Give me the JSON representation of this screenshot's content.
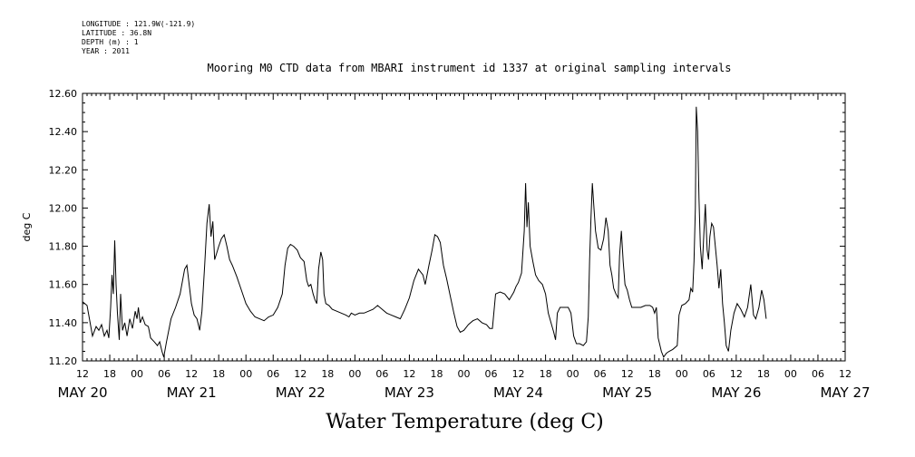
{
  "header": {
    "lines": [
      "LONGITUDE : 121.9W(-121.9)",
      "LATITUDE : 36.8N",
      "DEPTH (m) : 1",
      "YEAR : 2011"
    ],
    "title": "Mooring M0 CTD data from MBARI instrument id 1337 at original sampling intervals"
  },
  "caption": "Water Temperature (deg C)",
  "chart_data": {
    "type": "line",
    "title": "Mooring M0 CTD data from MBARI instrument id 1337 at original sampling intervals",
    "xlabel": "",
    "ylabel": "deg C",
    "ylim": [
      11.2,
      12.6
    ],
    "xlim": [
      12,
      180
    ],
    "x_unit": "hours since May 20 00:00, 2011",
    "yticks": [
      "11.20",
      "11.40",
      "11.60",
      "11.80",
      "12.00",
      "12.20",
      "12.40",
      "12.60"
    ],
    "xticks": [
      {
        "t": 12,
        "label": "12"
      },
      {
        "t": 18,
        "label": "18"
      },
      {
        "t": 24,
        "label": "00"
      },
      {
        "t": 30,
        "label": "06"
      },
      {
        "t": 36,
        "label": "12"
      },
      {
        "t": 42,
        "label": "18"
      },
      {
        "t": 48,
        "label": "00"
      },
      {
        "t": 54,
        "label": "06"
      },
      {
        "t": 60,
        "label": "12"
      },
      {
        "t": 66,
        "label": "18"
      },
      {
        "t": 72,
        "label": "00"
      },
      {
        "t": 78,
        "label": "06"
      },
      {
        "t": 84,
        "label": "12"
      },
      {
        "t": 90,
        "label": "18"
      },
      {
        "t": 96,
        "label": "00"
      },
      {
        "t": 102,
        "label": "06"
      },
      {
        "t": 108,
        "label": "12"
      },
      {
        "t": 114,
        "label": "18"
      },
      {
        "t": 120,
        "label": "00"
      },
      {
        "t": 126,
        "label": "06"
      },
      {
        "t": 132,
        "label": "12"
      },
      {
        "t": 138,
        "label": "18"
      },
      {
        "t": 144,
        "label": "00"
      },
      {
        "t": 150,
        "label": "06"
      },
      {
        "t": 156,
        "label": "12"
      },
      {
        "t": 162,
        "label": "18"
      },
      {
        "t": 168,
        "label": "00"
      },
      {
        "t": 174,
        "label": "06"
      },
      {
        "t": 180,
        "label": "12"
      }
    ],
    "day_labels": [
      {
        "t": 12,
        "label": "MAY 20"
      },
      {
        "t": 36,
        "label": "MAY 21"
      },
      {
        "t": 60,
        "label": "MAY 22"
      },
      {
        "t": 84,
        "label": "MAY 23"
      },
      {
        "t": 108,
        "label": "MAY 24"
      },
      {
        "t": 132,
        "label": "MAY 25"
      },
      {
        "t": 156,
        "label": "MAY 26"
      },
      {
        "t": 180,
        "label": "MAY 27"
      }
    ],
    "series": [
      {
        "name": "",
        "color": "#000000",
        "points": [
          [
            12,
            11.51
          ],
          [
            13,
            11.49
          ],
          [
            14.2,
            11.33
          ],
          [
            15,
            11.38
          ],
          [
            15.6,
            11.36
          ],
          [
            16.2,
            11.39
          ],
          [
            16.8,
            11.33
          ],
          [
            17.4,
            11.36
          ],
          [
            17.8,
            11.32
          ],
          [
            18.2,
            11.48
          ],
          [
            18.5,
            11.65
          ],
          [
            18.8,
            11.55
          ],
          [
            19.1,
            11.83
          ],
          [
            19.4,
            11.6
          ],
          [
            19.7,
            11.45
          ],
          [
            20.1,
            11.31
          ],
          [
            20.4,
            11.55
          ],
          [
            20.8,
            11.36
          ],
          [
            21.3,
            11.4
          ],
          [
            21.8,
            11.33
          ],
          [
            22.4,
            11.42
          ],
          [
            23,
            11.37
          ],
          [
            23.6,
            11.46
          ],
          [
            24,
            11.42
          ],
          [
            24.3,
            11.48
          ],
          [
            24.7,
            11.4
          ],
          [
            25.2,
            11.43
          ],
          [
            25.8,
            11.39
          ],
          [
            26.5,
            11.38
          ],
          [
            27,
            11.32
          ],
          [
            27.8,
            11.3
          ],
          [
            28.5,
            11.28
          ],
          [
            29,
            11.3
          ],
          [
            29.5,
            11.25
          ],
          [
            29.9,
            11.22
          ],
          [
            30.5,
            11.3
          ],
          [
            31.5,
            11.42
          ],
          [
            32.5,
            11.48
          ],
          [
            33.5,
            11.55
          ],
          [
            34.5,
            11.68
          ],
          [
            35,
            11.7
          ],
          [
            35.5,
            11.6
          ],
          [
            36,
            11.5
          ],
          [
            36.6,
            11.44
          ],
          [
            37.2,
            11.42
          ],
          [
            37.8,
            11.36
          ],
          [
            38.3,
            11.46
          ],
          [
            38.9,
            11.7
          ],
          [
            39.4,
            11.92
          ],
          [
            39.9,
            12.02
          ],
          [
            40.3,
            11.85
          ],
          [
            40.7,
            11.93
          ],
          [
            41.1,
            11.73
          ],
          [
            41.5,
            11.76
          ],
          [
            42,
            11.8
          ],
          [
            42.6,
            11.84
          ],
          [
            43.2,
            11.86
          ],
          [
            43.8,
            11.8
          ],
          [
            44.4,
            11.73
          ],
          [
            45,
            11.7
          ],
          [
            46,
            11.64
          ],
          [
            47,
            11.57
          ],
          [
            48,
            11.5
          ],
          [
            49,
            11.46
          ],
          [
            50,
            11.43
          ],
          [
            51,
            11.42
          ],
          [
            52,
            11.41
          ],
          [
            53,
            11.43
          ],
          [
            54,
            11.44
          ],
          [
            55,
            11.48
          ],
          [
            56,
            11.55
          ],
          [
            56.6,
            11.7
          ],
          [
            57.2,
            11.79
          ],
          [
            57.8,
            11.81
          ],
          [
            58.5,
            11.8
          ],
          [
            59.3,
            11.78
          ],
          [
            60,
            11.74
          ],
          [
            60.8,
            11.72
          ],
          [
            61.4,
            11.62
          ],
          [
            61.8,
            11.59
          ],
          [
            62.3,
            11.6
          ],
          [
            62.8,
            11.55
          ],
          [
            63.2,
            11.52
          ],
          [
            63.6,
            11.5
          ],
          [
            64,
            11.68
          ],
          [
            64.5,
            11.77
          ],
          [
            64.9,
            11.73
          ],
          [
            65.2,
            11.55
          ],
          [
            65.6,
            11.5
          ],
          [
            66.3,
            11.49
          ],
          [
            67,
            11.47
          ],
          [
            68,
            11.46
          ],
          [
            69,
            11.45
          ],
          [
            70,
            11.44
          ],
          [
            70.7,
            11.43
          ],
          [
            71.2,
            11.45
          ],
          [
            72,
            11.44
          ],
          [
            73,
            11.45
          ],
          [
            74,
            11.45
          ],
          [
            75,
            11.46
          ],
          [
            76,
            11.47
          ],
          [
            77,
            11.49
          ],
          [
            78,
            11.47
          ],
          [
            79,
            11.45
          ],
          [
            80,
            11.44
          ],
          [
            81,
            11.43
          ],
          [
            82,
            11.42
          ],
          [
            83,
            11.47
          ],
          [
            84,
            11.53
          ],
          [
            85,
            11.62
          ],
          [
            86,
            11.68
          ],
          [
            87,
            11.65
          ],
          [
            87.5,
            11.6
          ],
          [
            88.3,
            11.7
          ],
          [
            89,
            11.78
          ],
          [
            89.6,
            11.86
          ],
          [
            90.2,
            11.85
          ],
          [
            90.8,
            11.82
          ],
          [
            91.5,
            11.7
          ],
          [
            92.2,
            11.63
          ],
          [
            93,
            11.54
          ],
          [
            93.8,
            11.45
          ],
          [
            94.5,
            11.38
          ],
          [
            95.2,
            11.35
          ],
          [
            96,
            11.36
          ],
          [
            97,
            11.39
          ],
          [
            98,
            11.41
          ],
          [
            99,
            11.42
          ],
          [
            100,
            11.4
          ],
          [
            101,
            11.39
          ],
          [
            101.7,
            11.37
          ],
          [
            102.3,
            11.37
          ],
          [
            103,
            11.55
          ],
          [
            104,
            11.56
          ],
          [
            105,
            11.55
          ],
          [
            106,
            11.52
          ],
          [
            107,
            11.56
          ],
          [
            107.5,
            11.59
          ],
          [
            108,
            11.61
          ],
          [
            108.7,
            11.66
          ],
          [
            109.3,
            11.88
          ],
          [
            109.6,
            12.13
          ],
          [
            109.9,
            11.9
          ],
          [
            110.2,
            12.03
          ],
          [
            110.6,
            11.8
          ],
          [
            111.2,
            11.72
          ],
          [
            111.8,
            11.65
          ],
          [
            112.5,
            11.62
          ],
          [
            113.3,
            11.6
          ],
          [
            114,
            11.55
          ],
          [
            114.6,
            11.45
          ],
          [
            115.2,
            11.4
          ],
          [
            115.8,
            11.35
          ],
          [
            116.2,
            11.31
          ],
          [
            116.6,
            11.45
          ],
          [
            117.2,
            11.48
          ],
          [
            118,
            11.48
          ],
          [
            119,
            11.48
          ],
          [
            119.6,
            11.45
          ],
          [
            120.2,
            11.33
          ],
          [
            120.8,
            11.29
          ],
          [
            121.5,
            11.29
          ],
          [
            122.3,
            11.28
          ],
          [
            123,
            11.3
          ],
          [
            123.4,
            11.43
          ],
          [
            123.7,
            11.73
          ],
          [
            124,
            11.95
          ],
          [
            124.3,
            12.13
          ],
          [
            124.6,
            12.02
          ],
          [
            125,
            11.88
          ],
          [
            125.6,
            11.79
          ],
          [
            126.2,
            11.78
          ],
          [
            126.8,
            11.84
          ],
          [
            127.3,
            11.95
          ],
          [
            127.8,
            11.88
          ],
          [
            128.2,
            11.7
          ],
          [
            128.6,
            11.65
          ],
          [
            129,
            11.58
          ],
          [
            129.5,
            11.55
          ],
          [
            130,
            11.53
          ],
          [
            130.3,
            11.75
          ],
          [
            130.7,
            11.88
          ],
          [
            131.1,
            11.72
          ],
          [
            131.5,
            11.6
          ],
          [
            132,
            11.57
          ],
          [
            132.5,
            11.52
          ],
          [
            133,
            11.48
          ],
          [
            134,
            11.48
          ],
          [
            135,
            11.48
          ],
          [
            136,
            11.49
          ],
          [
            137,
            11.49
          ],
          [
            137.6,
            11.48
          ],
          [
            138,
            11.45
          ],
          [
            138.4,
            11.48
          ],
          [
            138.8,
            11.32
          ],
          [
            139.5,
            11.25
          ],
          [
            140,
            11.22
          ],
          [
            140.6,
            11.24
          ],
          [
            141.2,
            11.25
          ],
          [
            142,
            11.26
          ],
          [
            143,
            11.28
          ],
          [
            143.4,
            11.44
          ],
          [
            144,
            11.49
          ],
          [
            144.8,
            11.5
          ],
          [
            145.6,
            11.52
          ],
          [
            146,
            11.58
          ],
          [
            146.4,
            11.56
          ],
          [
            146.7,
            11.72
          ],
          [
            147,
            12.0
          ],
          [
            147.2,
            12.53
          ],
          [
            147.5,
            12.4
          ],
          [
            147.8,
            12.05
          ],
          [
            148.1,
            11.8
          ],
          [
            148.5,
            11.68
          ],
          [
            148.9,
            11.88
          ],
          [
            149.2,
            12.02
          ],
          [
            149.6,
            11.78
          ],
          [
            149.9,
            11.73
          ],
          [
            150.2,
            11.85
          ],
          [
            150.6,
            11.92
          ],
          [
            151,
            11.9
          ],
          [
            151.4,
            11.8
          ],
          [
            151.8,
            11.7
          ],
          [
            152.2,
            11.58
          ],
          [
            152.6,
            11.68
          ],
          [
            153,
            11.5
          ],
          [
            153.4,
            11.4
          ],
          [
            153.8,
            11.28
          ],
          [
            154.3,
            11.25
          ],
          [
            154.8,
            11.36
          ],
          [
            155.5,
            11.45
          ],
          [
            156.2,
            11.5
          ],
          [
            157,
            11.47
          ],
          [
            157.8,
            11.43
          ],
          [
            158.5,
            11.48
          ],
          [
            159.2,
            11.6
          ],
          [
            159.8,
            11.44
          ],
          [
            160.3,
            11.42
          ],
          [
            161,
            11.48
          ],
          [
            161.6,
            11.57
          ],
          [
            162.1,
            11.52
          ],
          [
            162.4,
            11.46
          ],
          [
            162.6,
            11.42
          ]
        ]
      }
    ]
  }
}
